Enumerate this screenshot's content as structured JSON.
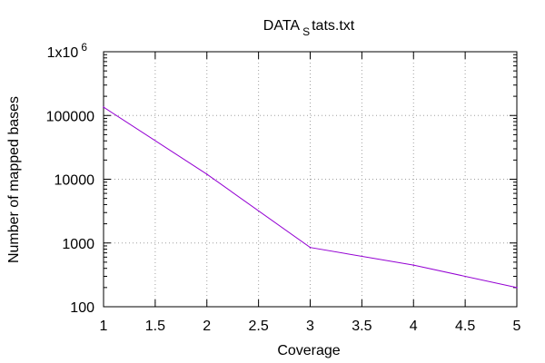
{
  "chart_data": {
    "type": "line",
    "title": {
      "main": "DATA",
      "sub": "S",
      "rest": "tats.txt"
    },
    "xlabel": "Coverage",
    "ylabel": "Number of mapped bases",
    "xlim": [
      1,
      5
    ],
    "ylim": [
      100,
      1000000
    ],
    "y_scale": "log",
    "grid": true,
    "x_ticks": [
      "1",
      "1.5",
      "2",
      "2.5",
      "3",
      "3.5",
      "4",
      "4.5",
      "5"
    ],
    "y_ticks": [
      {
        "value": 100,
        "label": "100"
      },
      {
        "value": 1000,
        "label": "1000"
      },
      {
        "value": 10000,
        "label": "10000"
      },
      {
        "value": 100000,
        "label": "100000"
      },
      {
        "value": 1000000,
        "label": "1x10",
        "exp": "6"
      }
    ],
    "series": [
      {
        "color": "#9400d3",
        "x": [
          1,
          2,
          3,
          4,
          5
        ],
        "y": [
          135000,
          12000,
          850,
          450,
          200
        ]
      }
    ]
  }
}
